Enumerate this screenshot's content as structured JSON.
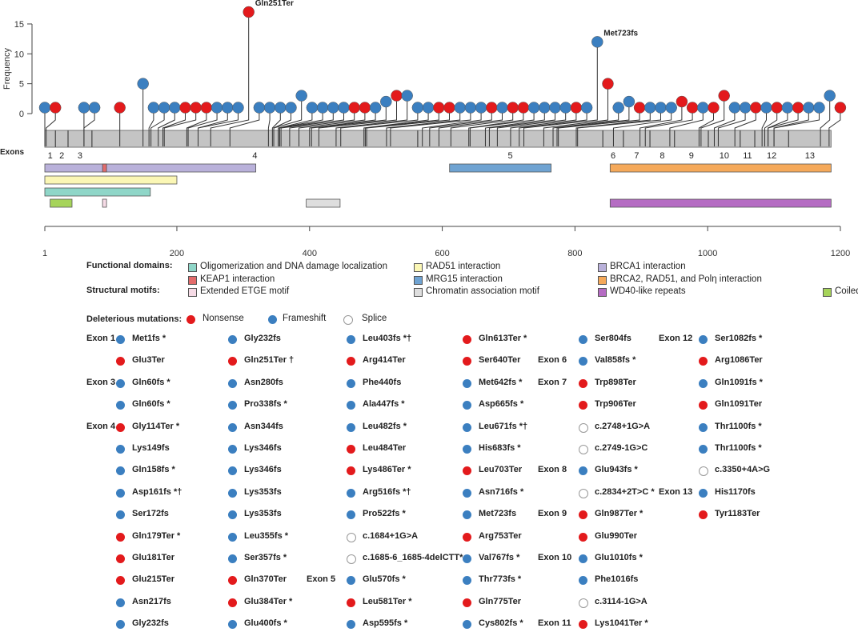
{
  "colors": {
    "nonsense": "#e31a1c",
    "frameshift": "#3b7fc0",
    "splice": "#ffffff",
    "exon_bar": "#c4c4c4"
  },
  "chart_data": {
    "type": "lollipop",
    "ylabel": "Frequency",
    "yticks": [
      0,
      5,
      10,
      15
    ],
    "ylim": [
      0,
      17
    ],
    "xticks": [
      1,
      200,
      400,
      600,
      800,
      1000,
      1200
    ],
    "xlim": [
      1,
      1200
    ],
    "protein_length": 1186,
    "exons_label": "Exons",
    "exons": [
      {
        "label": "1",
        "start": 1,
        "end": 17
      },
      {
        "label": "2",
        "start": 17,
        "end": 36
      },
      {
        "label": "3",
        "start": 36,
        "end": 72
      },
      {
        "label": "4",
        "start": 72,
        "end": 563
      },
      {
        "label": "5",
        "start": 563,
        "end": 842
      },
      {
        "label": "6",
        "start": 842,
        "end": 873
      },
      {
        "label": "7",
        "start": 873,
        "end": 913
      },
      {
        "label": "8",
        "start": 913,
        "end": 950
      },
      {
        "label": "9",
        "start": 950,
        "end": 1001
      },
      {
        "label": "10",
        "start": 1001,
        "end": 1049
      },
      {
        "label": "11",
        "start": 1049,
        "end": 1071
      },
      {
        "label": "12",
        "start": 1071,
        "end": 1122
      },
      {
        "label": "13",
        "start": 1122,
        "end": 1186
      }
    ],
    "domains": [
      {
        "row": 1,
        "start": 1,
        "end": 319,
        "color": "#b9b1da",
        "name": "BRCA1 interaction"
      },
      {
        "row": 1,
        "start": 88,
        "end": 94,
        "color": "#e36b6b",
        "name": "KEAP1 interaction"
      },
      {
        "row": 1,
        "start": 611,
        "end": 764,
        "color": "#6fa3d2",
        "name": "MRG15 interaction"
      },
      {
        "row": 1,
        "start": 853,
        "end": 1186,
        "color": "#f5a95a",
        "name": "BRCA2, RAD51, and Polη interaction"
      },
      {
        "row": 2,
        "start": 1,
        "end": 200,
        "color": "#fbf7b5",
        "name": "RAD51 interaction"
      },
      {
        "row": 3,
        "start": 1,
        "end": 160,
        "color": "#8fd6c8",
        "name": "Oligomerization and DNA damage localization"
      },
      {
        "row": 4,
        "start": 9,
        "end": 42,
        "color": "#a6d45a",
        "name": "Coiled-coil"
      },
      {
        "row": 4,
        "start": 88,
        "end": 94,
        "color": "#f6dbe6",
        "name": "Extended ETGE motif"
      },
      {
        "row": 4,
        "start": 395,
        "end": 446,
        "color": "#dedede",
        "name": "Chromatin association motif"
      },
      {
        "row": 4,
        "start": 853,
        "end": 1186,
        "color": "#b56cc3",
        "name": "WD40-like repeats"
      }
    ],
    "mutations": [
      {
        "pos": 1,
        "type": "frameshift",
        "freq": 1
      },
      {
        "pos": 3,
        "type": "nonsense",
        "freq": 1
      },
      {
        "pos": 60,
        "type": "frameshift",
        "freq": 1
      },
      {
        "pos": 60,
        "type": "frameshift",
        "freq": 1
      },
      {
        "pos": 114,
        "type": "nonsense",
        "freq": 1
      },
      {
        "pos": 149,
        "type": "frameshift",
        "freq": 5
      },
      {
        "pos": 158,
        "type": "frameshift",
        "freq": 1
      },
      {
        "pos": 161,
        "type": "frameshift",
        "freq": 1
      },
      {
        "pos": 172,
        "type": "frameshift",
        "freq": 1
      },
      {
        "pos": 179,
        "type": "nonsense",
        "freq": 1
      },
      {
        "pos": 181,
        "type": "nonsense",
        "freq": 1
      },
      {
        "pos": 215,
        "type": "nonsense",
        "freq": 1
      },
      {
        "pos": 217,
        "type": "frameshift",
        "freq": 1
      },
      {
        "pos": 232,
        "type": "frameshift",
        "freq": 1
      },
      {
        "pos": 232,
        "type": "frameshift",
        "freq": 1
      },
      {
        "pos": 251,
        "type": "nonsense",
        "freq": 17,
        "label": "Gln251Ter"
      },
      {
        "pos": 280,
        "type": "frameshift",
        "freq": 1
      },
      {
        "pos": 338,
        "type": "frameshift",
        "freq": 1
      },
      {
        "pos": 344,
        "type": "frameshift",
        "freq": 1
      },
      {
        "pos": 346,
        "type": "frameshift",
        "freq": 1
      },
      {
        "pos": 346,
        "type": "frameshift",
        "freq": 3
      },
      {
        "pos": 353,
        "type": "frameshift",
        "freq": 1
      },
      {
        "pos": 353,
        "type": "frameshift",
        "freq": 1
      },
      {
        "pos": 355,
        "type": "frameshift",
        "freq": 1
      },
      {
        "pos": 357,
        "type": "frameshift",
        "freq": 1
      },
      {
        "pos": 370,
        "type": "nonsense",
        "freq": 1
      },
      {
        "pos": 384,
        "type": "nonsense",
        "freq": 1
      },
      {
        "pos": 400,
        "type": "frameshift",
        "freq": 1
      },
      {
        "pos": 403,
        "type": "frameshift",
        "freq": 2
      },
      {
        "pos": 414,
        "type": "nonsense",
        "freq": 3
      },
      {
        "pos": 440,
        "type": "frameshift",
        "freq": 3
      },
      {
        "pos": 447,
        "type": "frameshift",
        "freq": 1
      },
      {
        "pos": 482,
        "type": "frameshift",
        "freq": 1
      },
      {
        "pos": 484,
        "type": "nonsense",
        "freq": 1
      },
      {
        "pos": 486,
        "type": "nonsense",
        "freq": 1
      },
      {
        "pos": 516,
        "type": "frameshift",
        "freq": 1
      },
      {
        "pos": 522,
        "type": "frameshift",
        "freq": 1
      },
      {
        "pos": 570,
        "type": "frameshift",
        "freq": 1
      },
      {
        "pos": 581,
        "type": "nonsense",
        "freq": 1
      },
      {
        "pos": 595,
        "type": "frameshift",
        "freq": 1
      },
      {
        "pos": 613,
        "type": "nonsense",
        "freq": 1
      },
      {
        "pos": 640,
        "type": "nonsense",
        "freq": 1
      },
      {
        "pos": 642,
        "type": "frameshift",
        "freq": 1
      },
      {
        "pos": 665,
        "type": "frameshift",
        "freq": 1
      },
      {
        "pos": 671,
        "type": "frameshift",
        "freq": 1
      },
      {
        "pos": 683,
        "type": "frameshift",
        "freq": 1
      },
      {
        "pos": 703,
        "type": "nonsense",
        "freq": 1
      },
      {
        "pos": 716,
        "type": "frameshift",
        "freq": 1
      },
      {
        "pos": 723,
        "type": "frameshift",
        "freq": 12,
        "label": "Met723fs"
      },
      {
        "pos": 753,
        "type": "nonsense",
        "freq": 5
      },
      {
        "pos": 767,
        "type": "frameshift",
        "freq": 1
      },
      {
        "pos": 773,
        "type": "frameshift",
        "freq": 2
      },
      {
        "pos": 775,
        "type": "nonsense",
        "freq": 1
      },
      {
        "pos": 802,
        "type": "frameshift",
        "freq": 1
      },
      {
        "pos": 804,
        "type": "frameshift",
        "freq": 1
      },
      {
        "pos": 858,
        "type": "frameshift",
        "freq": 1
      },
      {
        "pos": 898,
        "type": "nonsense",
        "freq": 2
      },
      {
        "pos": 906,
        "type": "nonsense",
        "freq": 1
      },
      {
        "pos": 943,
        "type": "frameshift",
        "freq": 1
      },
      {
        "pos": 987,
        "type": "nonsense",
        "freq": 1
      },
      {
        "pos": 990,
        "type": "nonsense",
        "freq": 3
      },
      {
        "pos": 1010,
        "type": "frameshift",
        "freq": 1
      },
      {
        "pos": 1016,
        "type": "frameshift",
        "freq": 1
      },
      {
        "pos": 1041,
        "type": "nonsense",
        "freq": 1
      },
      {
        "pos": 1082,
        "type": "frameshift",
        "freq": 1
      },
      {
        "pos": 1086,
        "type": "nonsense",
        "freq": 1
      },
      {
        "pos": 1091,
        "type": "frameshift",
        "freq": 1
      },
      {
        "pos": 1091,
        "type": "nonsense",
        "freq": 1
      },
      {
        "pos": 1100,
        "type": "frameshift",
        "freq": 1
      },
      {
        "pos": 1100,
        "type": "frameshift",
        "freq": 1
      },
      {
        "pos": 1170,
        "type": "frameshift",
        "freq": 3
      },
      {
        "pos": 1183,
        "type": "nonsense",
        "freq": 1
      }
    ]
  },
  "legend": {
    "functional_label": "Functional domains:",
    "structural_label": "Structural motifs:",
    "items": [
      {
        "text": "Oligomerization and DNA damage localization",
        "color": "#8fd6c8"
      },
      {
        "text": "RAD51 interaction",
        "color": "#fbf7b5"
      },
      {
        "text": "BRCA1 interaction",
        "color": "#b9b1da"
      },
      {
        "text": "KEAP1 interaction",
        "color": "#e36b6b"
      },
      {
        "text": "MRG15 interaction",
        "color": "#6fa3d2"
      },
      {
        "text": "BRCA2, RAD51, and Polη interaction",
        "color": "#f5a95a"
      },
      {
        "text": "Extended ETGE motif",
        "color": "#f6dbe6"
      },
      {
        "text": "Chromatin association motif",
        "color": "#dedede"
      },
      {
        "text": "WD40-like repeats",
        "color": "#b56cc3"
      },
      {
        "text": "Coiled-coil",
        "color": "#a6d45a"
      }
    ],
    "mutations_label": "Deleterious mutations:",
    "types": [
      {
        "type": "nonsense",
        "text": "Nonsense"
      },
      {
        "type": "frameshift",
        "text": "Frameshift"
      },
      {
        "type": "splice",
        "text": "Splice"
      }
    ]
  },
  "mutation_table": [
    [
      {
        "exon": "Exon 1",
        "name": "Met1fs *",
        "type": "frameshift"
      },
      {
        "name": "Glu3Ter",
        "type": "nonsense"
      },
      {
        "exon": "Exon 3",
        "name": "Gln60fs *",
        "type": "frameshift"
      },
      {
        "name": "Gln60fs *",
        "type": "frameshift"
      },
      {
        "exon": "Exon 4",
        "name": "Gly114Ter *",
        "type": "nonsense"
      },
      {
        "name": "Lys149fs",
        "type": "frameshift"
      },
      {
        "name": "Gln158fs *",
        "type": "frameshift"
      },
      {
        "name": "Asp161fs *†",
        "type": "frameshift"
      },
      {
        "name": "Ser172fs",
        "type": "frameshift"
      },
      {
        "name": "Gln179Ter *",
        "type": "nonsense"
      },
      {
        "name": "Glu181Ter",
        "type": "nonsense"
      },
      {
        "name": "Glu215Ter",
        "type": "nonsense"
      },
      {
        "name": "Asn217fs",
        "type": "frameshift"
      },
      {
        "name": "Gly232fs",
        "type": "frameshift"
      }
    ],
    [
      {
        "name": "Gly232fs",
        "type": "frameshift"
      },
      {
        "name": "Gln251Ter †",
        "type": "nonsense"
      },
      {
        "name": "Asn280fs",
        "type": "frameshift"
      },
      {
        "name": "Pro338fs *",
        "type": "frameshift"
      },
      {
        "name": "Asn344fs",
        "type": "frameshift"
      },
      {
        "name": "Lys346fs",
        "type": "frameshift"
      },
      {
        "name": "Lys346fs",
        "type": "frameshift"
      },
      {
        "name": "Lys353fs",
        "type": "frameshift"
      },
      {
        "name": "Lys353fs",
        "type": "frameshift"
      },
      {
        "name": "Leu355fs *",
        "type": "frameshift"
      },
      {
        "name": "Ser357fs *",
        "type": "frameshift"
      },
      {
        "name": "Gln370Ter",
        "type": "nonsense"
      },
      {
        "name": "Glu384Ter *",
        "type": "nonsense"
      },
      {
        "name": "Glu400fs *",
        "type": "frameshift"
      }
    ],
    [
      {
        "name": "Leu403fs *†",
        "type": "frameshift"
      },
      {
        "name": "Arg414Ter",
        "type": "nonsense"
      },
      {
        "name": "Phe440fs",
        "type": "frameshift"
      },
      {
        "name": "Ala447fs *",
        "type": "frameshift"
      },
      {
        "name": "Leu482fs *",
        "type": "frameshift"
      },
      {
        "name": "Leu484Ter",
        "type": "nonsense"
      },
      {
        "name": "Lys486Ter *",
        "type": "nonsense"
      },
      {
        "name": "Arg516fs *†",
        "type": "frameshift"
      },
      {
        "name": "Pro522fs *",
        "type": "frameshift"
      },
      {
        "name": "c.1684+1G>A",
        "type": "splice"
      },
      {
        "name": "c.1685-6_1685-4delCTT*",
        "type": "splice"
      },
      {
        "exon": "Exon 5",
        "name": "Glu570fs *",
        "type": "frameshift"
      },
      {
        "name": "Leu581Ter *",
        "type": "nonsense"
      },
      {
        "name": "Asp595fs *",
        "type": "frameshift"
      }
    ],
    [
      {
        "name": "Gln613Ter *",
        "type": "nonsense"
      },
      {
        "name": "Ser640Ter",
        "type": "nonsense"
      },
      {
        "name": "Met642fs *",
        "type": "frameshift"
      },
      {
        "name": "Asp665fs *",
        "type": "frameshift"
      },
      {
        "name": "Leu671fs *†",
        "type": "frameshift"
      },
      {
        "name": "His683fs *",
        "type": "frameshift"
      },
      {
        "name": "Leu703Ter",
        "type": "nonsense"
      },
      {
        "name": "Asn716fs *",
        "type": "frameshift"
      },
      {
        "name": "Met723fs",
        "type": "frameshift"
      },
      {
        "name": "Arg753Ter",
        "type": "nonsense"
      },
      {
        "name": "Val767fs *",
        "type": "frameshift"
      },
      {
        "name": "Thr773fs *",
        "type": "frameshift"
      },
      {
        "name": "Gln775Ter",
        "type": "nonsense"
      },
      {
        "name": "Cys802fs *",
        "type": "frameshift"
      }
    ],
    [
      {
        "name": "Ser804fs",
        "type": "frameshift"
      },
      {
        "exon": "Exon 6",
        "name": "Val858fs *",
        "type": "frameshift"
      },
      {
        "exon": "Exon 7",
        "name": "Trp898Ter",
        "type": "nonsense"
      },
      {
        "name": "Trp906Ter",
        "type": "nonsense"
      },
      {
        "name": "c.2748+1G>A",
        "type": "splice"
      },
      {
        "name": "c.2749-1G>C",
        "type": "splice"
      },
      {
        "exon": "Exon 8",
        "name": "Glu943fs *",
        "type": "frameshift"
      },
      {
        "name": "c.2834+2T>C *",
        "type": "splice"
      },
      {
        "exon": "Exon 9",
        "name": "Gln987Ter *",
        "type": "nonsense"
      },
      {
        "name": "Glu990Ter",
        "type": "nonsense"
      },
      {
        "exon": "Exon 10",
        "name": "Glu1010fs *",
        "type": "frameshift"
      },
      {
        "name": "Phe1016fs",
        "type": "frameshift"
      },
      {
        "name": "c.3114-1G>A",
        "type": "splice"
      },
      {
        "exon": "Exon 11",
        "name": "Lys1041Ter *",
        "type": "nonsense"
      }
    ],
    [
      {
        "exon": "Exon 12",
        "name": "Ser1082fs *",
        "type": "frameshift"
      },
      {
        "name": "Arg1086Ter",
        "type": "nonsense"
      },
      {
        "name": "Gln1091fs *",
        "type": "frameshift"
      },
      {
        "name": "Gln1091Ter",
        "type": "nonsense"
      },
      {
        "name": "Thr1100fs *",
        "type": "frameshift"
      },
      {
        "name": "Thr1100fs *",
        "type": "frameshift"
      },
      {
        "name": "c.3350+4A>G",
        "type": "splice"
      },
      {
        "exon": "Exon 13",
        "name": "His1170fs",
        "type": "frameshift"
      },
      {
        "name": "Tyr1183Ter",
        "type": "nonsense"
      }
    ]
  ]
}
